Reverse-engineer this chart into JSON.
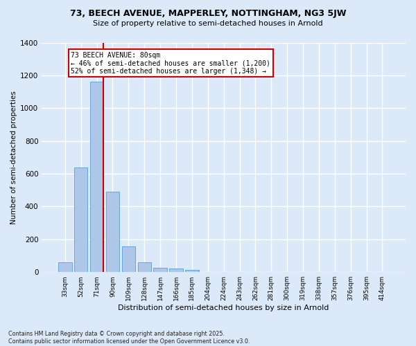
{
  "title1": "73, BEECH AVENUE, MAPPERLEY, NOTTINGHAM, NG3 5JW",
  "title2": "Size of property relative to semi-detached houses in Arnold",
  "xlabel": "Distribution of semi-detached houses by size in Arnold",
  "ylabel": "Number of semi-detached properties",
  "categories": [
    "33sqm",
    "52sqm",
    "71sqm",
    "90sqm",
    "109sqm",
    "128sqm",
    "147sqm",
    "166sqm",
    "185sqm",
    "204sqm",
    "224sqm",
    "243sqm",
    "262sqm",
    "281sqm",
    "300sqm",
    "319sqm",
    "338sqm",
    "357sqm",
    "376sqm",
    "395sqm",
    "414sqm"
  ],
  "values": [
    60,
    640,
    1160,
    490,
    155,
    60,
    25,
    20,
    15,
    0,
    0,
    0,
    0,
    0,
    0,
    0,
    0,
    0,
    0,
    0,
    0
  ],
  "bar_color": "#aec6e8",
  "bar_edge_color": "#5a9fd4",
  "property_sqm": 80,
  "annotation_title": "73 BEECH AVENUE: 80sqm",
  "annotation_line2": "← 46% of semi-detached houses are smaller (1,200)",
  "annotation_line3": "52% of semi-detached houses are larger (1,348) →",
  "annotation_box_color": "#ffffff",
  "annotation_edge_color": "#cc0000",
  "red_line_color": "#cc0000",
  "background_color": "#dce9f8",
  "grid_color": "#ffffff",
  "fig_background": "#dce9f8",
  "ylim": [
    0,
    1400
  ],
  "yticks": [
    0,
    200,
    400,
    600,
    800,
    1000,
    1200,
    1400
  ],
  "footer1": "Contains HM Land Registry data © Crown copyright and database right 2025.",
  "footer2": "Contains public sector information licensed under the Open Government Licence v3.0."
}
